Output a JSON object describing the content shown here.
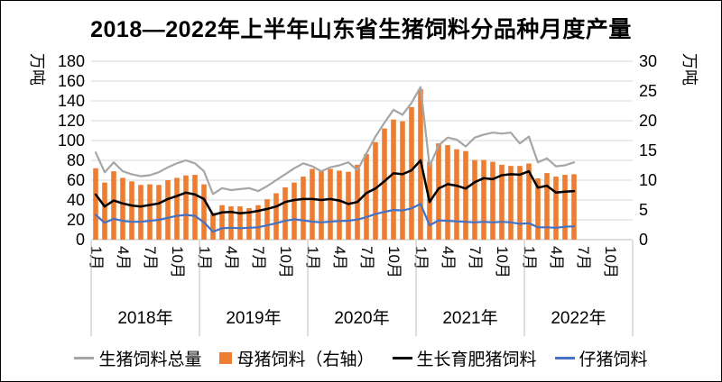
{
  "page": {
    "background": "#FFFFFF",
    "border_color": "#000000"
  },
  "title": "2018—2022年上半年山东省生猪饲料分品种月度产量",
  "chart_data": {
    "type": "combo-bar-line",
    "title": "2018—2022年上半年山东省生猪饲料分品种月度产量",
    "left_axis": {
      "unit": "万吨",
      "min": 0,
      "max": 180,
      "step": 20
    },
    "right_axis": {
      "unit": "万吨",
      "min": 0,
      "max": 30,
      "step": 5
    },
    "years": [
      "2018年",
      "2019年",
      "2020年",
      "2021年",
      "2022年"
    ],
    "month_tick_labels": [
      "1月",
      "4月",
      "7月",
      "10月"
    ],
    "months_per_year": 12,
    "axis_slots": 60,
    "data_months": 54,
    "grid": true,
    "legend_position": "bottom",
    "colors": {
      "grid": "#D9D9D9",
      "axis": "#BFBFBF",
      "text": "#000000"
    },
    "series": [
      {
        "name": "生猪饲料总量",
        "type": "line",
        "axis": "left",
        "color": "#A6A6A6",
        "width": 2.2,
        "values": [
          88,
          68,
          78,
          69,
          66,
          64,
          65,
          68,
          73,
          77,
          80,
          77,
          69,
          46,
          52,
          50,
          51,
          52,
          49,
          54,
          60,
          66,
          72,
          77,
          74,
          69,
          73,
          75,
          78,
          70,
          87,
          104,
          118,
          131,
          126,
          138,
          154,
          74,
          95,
          103,
          101,
          94,
          103,
          106,
          108,
          107,
          108,
          97,
          104,
          78,
          82,
          74,
          75,
          78
        ]
      },
      {
        "name": "母猪饲料（右轴）",
        "type": "bar",
        "axis": "right",
        "color": "#ED7D31",
        "values": [
          12.0,
          9.6,
          11.5,
          10.4,
          9.8,
          9.2,
          9.3,
          9.2,
          10.0,
          10.4,
          10.8,
          10.9,
          9.3,
          4.5,
          5.8,
          5.6,
          5.6,
          5.3,
          5.8,
          6.8,
          7.8,
          8.8,
          9.6,
          10.6,
          11.9,
          11.6,
          11.9,
          11.6,
          11.4,
          12.6,
          14.4,
          16.4,
          18.7,
          20.2,
          19.9,
          22.3,
          25.3,
          13.1,
          16.2,
          15.9,
          15.2,
          14.9,
          13.4,
          13.4,
          13.1,
          12.6,
          12.4,
          12.4,
          12.8,
          10.3,
          11.2,
          10.6,
          10.9,
          11.0
        ]
      },
      {
        "name": "生长育肥猪饲料",
        "type": "line",
        "axis": "left",
        "color": "#000000",
        "width": 2.5,
        "values": [
          45.5,
          33.5,
          39.5,
          36.5,
          34.5,
          33.5,
          35,
          36.5,
          41,
          44,
          47.5,
          45.5,
          41,
          25,
          27.5,
          28,
          26.5,
          27.5,
          29,
          31,
          33.5,
          38,
          40,
          41,
          41,
          40,
          41,
          39.5,
          36,
          38,
          47,
          51.5,
          59,
          67,
          66,
          70,
          80,
          38,
          51.5,
          56,
          54.5,
          51.5,
          58,
          62,
          61,
          65,
          66,
          65.5,
          69,
          52.5,
          54.5,
          47.5,
          48.5,
          49
        ]
      },
      {
        "name": "仔猪饲料",
        "type": "line",
        "axis": "left",
        "color": "#4472C4",
        "width": 2.2,
        "values": [
          25,
          17,
          21,
          19,
          18,
          18,
          19,
          20,
          22,
          24,
          25,
          24,
          17.5,
          8,
          11.5,
          12,
          11.5,
          12,
          12.5,
          14.5,
          16.5,
          19,
          20.5,
          19.5,
          18.2,
          17.5,
          18.2,
          18.8,
          19.1,
          20.3,
          22.7,
          25.8,
          28,
          30,
          29.5,
          31.5,
          36,
          14.5,
          19.5,
          19,
          18.5,
          18,
          17.5,
          18,
          17.5,
          18,
          17.5,
          16,
          16.5,
          12.5,
          12.5,
          12,
          13,
          13.5
        ]
      }
    ]
  }
}
